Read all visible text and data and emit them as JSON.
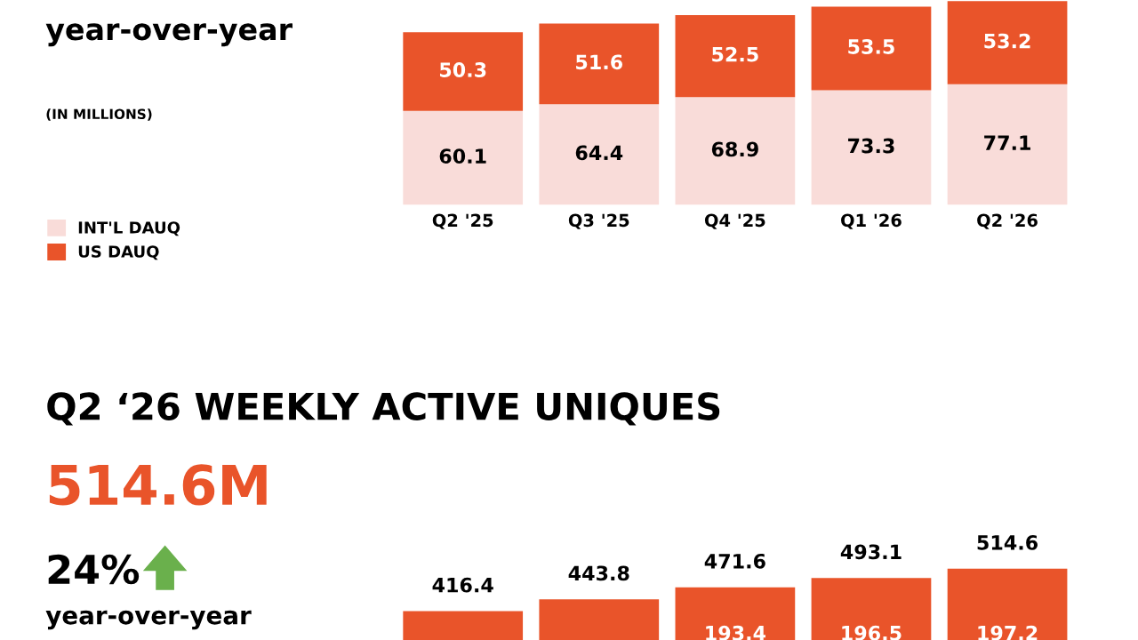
{
  "chart_data": [
    {
      "type": "bar",
      "stacked": true,
      "categories": [
        "Q2 '25",
        "Q3 '25",
        "Q4 '25",
        "Q1 '26",
        "Q2 '26"
      ],
      "ylim": [
        0,
        131
      ],
      "tick_labels": "x",
      "data_labels": true,
      "legend": "left",
      "series": [
        {
          "name": "INT'L DAUQ",
          "color": "#f9dcd9",
          "values": [
            60.1,
            64.4,
            68.9,
            73.3,
            77.1
          ]
        },
        {
          "name": "US DAUQ",
          "color": "#e9542a",
          "values": [
            50.3,
            51.6,
            52.5,
            53.5,
            53.2
          ]
        }
      ],
      "annotations": [
        "year-over-year",
        "(IN MILLIONS)"
      ]
    },
    {
      "type": "bar",
      "title": "Q2 ‘26 WEEKLY ACTIVE UNIQUES",
      "categories": [
        null,
        null,
        null,
        null,
        null
      ],
      "tick_labels": false,
      "data_labels": true,
      "series": [
        {
          "color": "#e9542a",
          "values": [
            416.4,
            443.8,
            471.6,
            493.1,
            514.6
          ]
        }
      ],
      "annotations": [
        "514.6M",
        "24%",
        "year-over-year",
        "193.4",
        "196.5",
        "197.2"
      ]
    }
  ]
}
